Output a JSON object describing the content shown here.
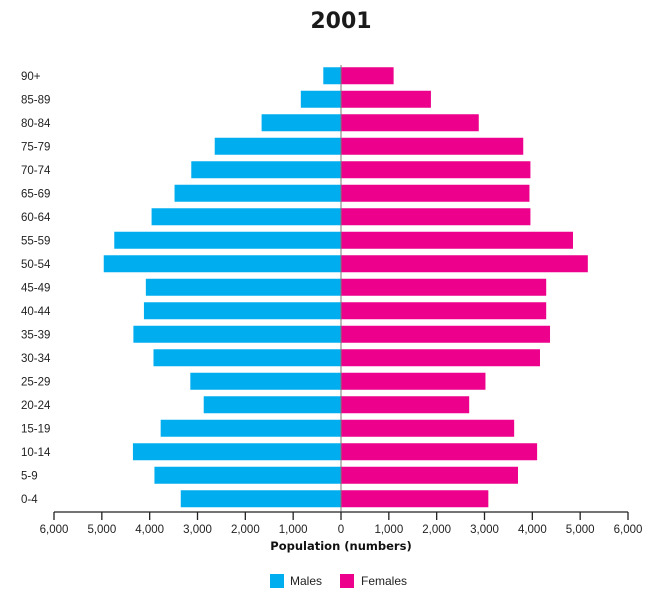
{
  "chart_data": {
    "type": "bar",
    "orientation": "horizontal",
    "title": "2001",
    "xlabel": "Population (numbers)",
    "ylabel": "",
    "xlim": [
      -6000,
      6000
    ],
    "x_ticks": [
      -6000,
      -5000,
      -4000,
      -3000,
      -2000,
      -1000,
      0,
      1000,
      2000,
      3000,
      4000,
      5000,
      6000
    ],
    "x_tick_labels": [
      "6,000",
      "5,000",
      "4,000",
      "3,000",
      "2,000",
      "1,000",
      "0",
      "1,000",
      "2,000",
      "3,000",
      "4,000",
      "5,000",
      "6,000"
    ],
    "grid": false,
    "legend_position": "bottom-center",
    "categories": [
      "0-4",
      "5-9",
      "10-14",
      "15-19",
      "20-24",
      "25-29",
      "30-34",
      "35-39",
      "40-44",
      "45-49",
      "50-54",
      "55-59",
      "60-64",
      "65-69",
      "70-74",
      "75-79",
      "80-84",
      "85-89",
      "90+"
    ],
    "series": [
      {
        "name": "Males",
        "color": "#00aeef",
        "values": [
          3350,
          3900,
          4350,
          3770,
          2870,
          3150,
          3920,
          4340,
          4120,
          4080,
          4960,
          4740,
          3960,
          3480,
          3130,
          2640,
          1660,
          840,
          370
        ]
      },
      {
        "name": "Females",
        "color": "#ec008c",
        "values": [
          3080,
          3700,
          4100,
          3620,
          2680,
          3020,
          4160,
          4370,
          4290,
          4290,
          5160,
          4850,
          3960,
          3940,
          3960,
          3810,
          2880,
          1880,
          1100
        ]
      }
    ]
  }
}
